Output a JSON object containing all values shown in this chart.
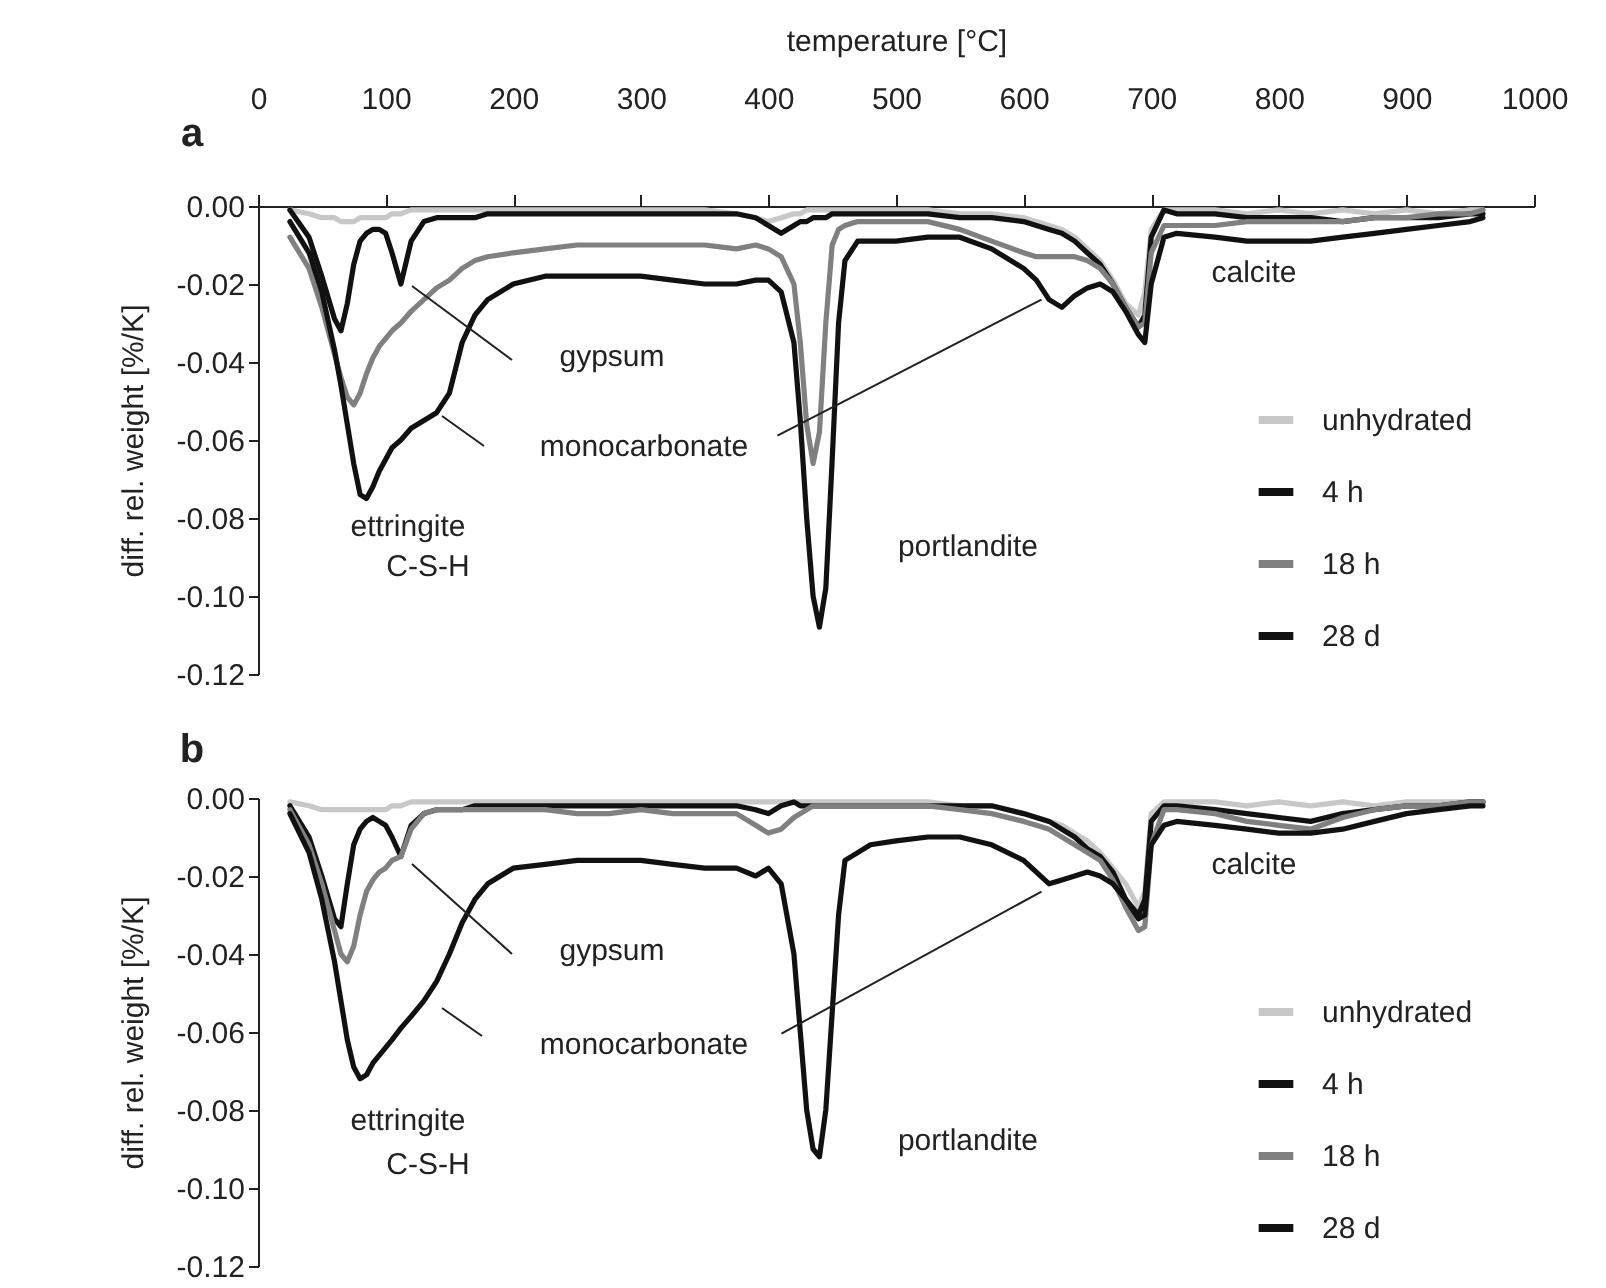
{
  "chart_data": [
    {
      "type": "line",
      "xlabel": "temperature [°C]",
      "ylabel": "diff. rel. weight [%/K]",
      "legend": "right",
      "xlim": [
        0,
        1000
      ],
      "xticks": [
        0,
        100,
        200,
        300,
        400,
        500,
        600,
        700,
        800,
        900,
        1000
      ],
      "ylim": [
        -0.12,
        0
      ],
      "yticks": [
        {
          "value": 0,
          "label": "0.00"
        },
        {
          "value": -0.02,
          "label": "-0.02"
        },
        {
          "value": -0.04,
          "label": "-0.04"
        },
        {
          "value": -0.06,
          "label": "-0.06"
        },
        {
          "value": -0.08,
          "label": "-0.08"
        },
        {
          "value": -0.1,
          "label": "-0.10"
        },
        {
          "value": -0.12,
          "label": "-0.12"
        }
      ],
      "annotations": [
        "a",
        "gypsum",
        {
          "text": "monocarbonate",
          "x": 614,
          "y": -0.024
        },
        "ettringite",
        "C-S-H",
        "portlandite",
        "calcite"
      ],
      "x": [
        25,
        40,
        50,
        60,
        65,
        70,
        75,
        80,
        85,
        90,
        95,
        100,
        105,
        112,
        120,
        130,
        140,
        150,
        160,
        170,
        180,
        200,
        225,
        250,
        275,
        300,
        325,
        350,
        375,
        390,
        400,
        410,
        420,
        425,
        430,
        435,
        440,
        445,
        450,
        455,
        460,
        470,
        480,
        500,
        525,
        550,
        575,
        600,
        610,
        620,
        630,
        640,
        650,
        660,
        670,
        680,
        690,
        695,
        700,
        710,
        720,
        750,
        775,
        800,
        825,
        850,
        875,
        900,
        925,
        950,
        960
      ],
      "series": [
        {
          "name": "unhydrated",
          "color": "#c8c8c8",
          "values": [
            -0.001,
            -0.002,
            -0.003,
            -0.003,
            -0.004,
            -0.004,
            -0.004,
            -0.003,
            -0.003,
            -0.003,
            -0.003,
            -0.003,
            -0.002,
            -0.002,
            -0.001,
            -0.001,
            -0.001,
            -0.001,
            -0.001,
            -0.001,
            -0.001,
            -0.001,
            -0.001,
            -0.001,
            -0.001,
            -0.001,
            -0.001,
            -0.001,
            -0.002,
            -0.003,
            -0.004,
            -0.003,
            -0.002,
            -0.002,
            -0.001,
            -0.001,
            -0.001,
            -0.001,
            -0.001,
            -0.001,
            -0.001,
            -0.001,
            -0.001,
            -0.001,
            -0.001,
            -0.002,
            -0.002,
            -0.003,
            -0.004,
            -0.005,
            -0.006,
            -0.008,
            -0.011,
            -0.014,
            -0.019,
            -0.025,
            -0.028,
            -0.022,
            -0.006,
            -0.001,
            -0.001,
            -0.001,
            -0.002,
            -0.001,
            -0.002,
            -0.001,
            -0.002,
            -0.001,
            -0.002,
            -0.001,
            -0.001
          ]
        },
        {
          "name": "4 h",
          "color": "#111111",
          "values": [
            -0.001,
            -0.008,
            -0.018,
            -0.029,
            -0.032,
            -0.025,
            -0.015,
            -0.009,
            -0.007,
            -0.006,
            -0.006,
            -0.007,
            -0.012,
            -0.02,
            -0.009,
            -0.004,
            -0.003,
            -0.003,
            -0.003,
            -0.003,
            -0.002,
            -0.002,
            -0.002,
            -0.002,
            -0.002,
            -0.002,
            -0.002,
            -0.002,
            -0.002,
            -0.003,
            -0.005,
            -0.007,
            -0.005,
            -0.004,
            -0.004,
            -0.003,
            -0.003,
            -0.003,
            -0.002,
            -0.002,
            -0.002,
            -0.002,
            -0.002,
            -0.002,
            -0.002,
            -0.003,
            -0.003,
            -0.004,
            -0.005,
            -0.006,
            -0.007,
            -0.009,
            -0.012,
            -0.015,
            -0.02,
            -0.026,
            -0.031,
            -0.028,
            -0.008,
            -0.001,
            -0.002,
            -0.002,
            -0.003,
            -0.003,
            -0.003,
            -0.004,
            -0.003,
            -0.003,
            -0.003,
            -0.002,
            -0.002
          ]
        },
        {
          "name": "18 h",
          "color": "#808080",
          "values": [
            -0.008,
            -0.016,
            -0.026,
            -0.038,
            -0.044,
            -0.049,
            -0.051,
            -0.048,
            -0.043,
            -0.039,
            -0.036,
            -0.034,
            -0.032,
            -0.03,
            -0.027,
            -0.024,
            -0.021,
            -0.019,
            -0.016,
            -0.014,
            -0.013,
            -0.012,
            -0.011,
            -0.01,
            -0.01,
            -0.01,
            -0.01,
            -0.01,
            -0.011,
            -0.01,
            -0.011,
            -0.013,
            -0.02,
            -0.035,
            -0.056,
            -0.066,
            -0.058,
            -0.03,
            -0.01,
            -0.006,
            -0.005,
            -0.004,
            -0.004,
            -0.004,
            -0.004,
            -0.006,
            -0.009,
            -0.012,
            -0.013,
            -0.013,
            -0.013,
            -0.013,
            -0.014,
            -0.016,
            -0.02,
            -0.026,
            -0.031,
            -0.03,
            -0.012,
            -0.005,
            -0.005,
            -0.005,
            -0.004,
            -0.004,
            -0.004,
            -0.004,
            -0.003,
            -0.003,
            -0.002,
            -0.002,
            -0.001
          ]
        },
        {
          "name": "28 d",
          "color": "#111111",
          "values": [
            -0.004,
            -0.012,
            -0.022,
            -0.037,
            -0.046,
            -0.056,
            -0.066,
            -0.074,
            -0.075,
            -0.072,
            -0.068,
            -0.065,
            -0.062,
            -0.06,
            -0.057,
            -0.055,
            -0.053,
            -0.048,
            -0.035,
            -0.028,
            -0.024,
            -0.02,
            -0.018,
            -0.018,
            -0.018,
            -0.018,
            -0.019,
            -0.02,
            -0.02,
            -0.019,
            -0.019,
            -0.022,
            -0.035,
            -0.055,
            -0.08,
            -0.1,
            -0.108,
            -0.098,
            -0.065,
            -0.03,
            -0.014,
            -0.009,
            -0.009,
            -0.009,
            -0.008,
            -0.008,
            -0.011,
            -0.016,
            -0.019,
            -0.024,
            -0.026,
            -0.023,
            -0.021,
            -0.02,
            -0.022,
            -0.027,
            -0.033,
            -0.035,
            -0.02,
            -0.008,
            -0.007,
            -0.008,
            -0.009,
            -0.009,
            -0.009,
            -0.008,
            -0.007,
            -0.006,
            -0.005,
            -0.004,
            -0.003
          ]
        }
      ]
    },
    {
      "type": "line",
      "ylabel": "diff. rel. weight [%/K]",
      "legend": "right",
      "tick_labels": "y",
      "xlim": [
        0,
        1000
      ],
      "xticks": [
        0,
        100,
        200,
        300,
        400,
        500,
        600,
        700,
        800,
        900,
        1000
      ],
      "ylim": [
        -0.12,
        0
      ],
      "yticks": [
        {
          "value": 0,
          "label": "0.00"
        },
        {
          "value": -0.02,
          "label": "-0.02"
        },
        {
          "value": -0.04,
          "label": "-0.04"
        },
        {
          "value": -0.06,
          "label": "-0.06"
        },
        {
          "value": -0.08,
          "label": "-0.08"
        },
        {
          "value": -0.1,
          "label": "-0.10"
        },
        {
          "value": -0.12,
          "label": "-0.12"
        }
      ],
      "annotations": [
        "b",
        "gypsum",
        {
          "text": "monocarbonate",
          "x": 614,
          "y": -0.024
        },
        "ettringite",
        "C-S-H",
        "portlandite",
        "calcite"
      ],
      "x": [
        25,
        40,
        50,
        60,
        65,
        70,
        75,
        80,
        85,
        90,
        95,
        100,
        105,
        112,
        120,
        130,
        140,
        150,
        160,
        170,
        180,
        200,
        225,
        250,
        275,
        300,
        325,
        350,
        375,
        390,
        400,
        410,
        420,
        425,
        430,
        435,
        440,
        445,
        450,
        455,
        460,
        470,
        480,
        500,
        525,
        550,
        575,
        600,
        610,
        620,
        630,
        640,
        650,
        660,
        670,
        680,
        690,
        695,
        700,
        710,
        720,
        750,
        775,
        800,
        825,
        850,
        875,
        900,
        925,
        950,
        960
      ],
      "series": [
        {
          "name": "unhydrated",
          "color": "#c8c8c8",
          "values": [
            -0.001,
            -0.002,
            -0.003,
            -0.003,
            -0.003,
            -0.003,
            -0.003,
            -0.003,
            -0.003,
            -0.003,
            -0.003,
            -0.003,
            -0.002,
            -0.002,
            -0.001,
            -0.001,
            -0.001,
            -0.001,
            -0.001,
            -0.001,
            -0.001,
            -0.001,
            -0.001,
            -0.001,
            -0.001,
            -0.001,
            -0.001,
            -0.001,
            -0.001,
            -0.001,
            -0.001,
            -0.001,
            -0.001,
            -0.001,
            -0.001,
            -0.001,
            -0.001,
            -0.001,
            -0.001,
            -0.001,
            -0.001,
            -0.001,
            -0.001,
            -0.001,
            -0.001,
            -0.002,
            -0.002,
            -0.004,
            -0.005,
            -0.006,
            -0.007,
            -0.009,
            -0.011,
            -0.014,
            -0.018,
            -0.022,
            -0.028,
            -0.024,
            -0.004,
            -0.001,
            -0.001,
            -0.001,
            -0.002,
            -0.001,
            -0.002,
            -0.001,
            -0.002,
            -0.001,
            -0.001,
            -0.001,
            -0.001
          ]
        },
        {
          "name": "4 h",
          "color": "#111111",
          "values": [
            -0.002,
            -0.01,
            -0.02,
            -0.031,
            -0.033,
            -0.022,
            -0.012,
            -0.008,
            -0.006,
            -0.005,
            -0.006,
            -0.007,
            -0.01,
            -0.015,
            -0.007,
            -0.004,
            -0.003,
            -0.003,
            -0.003,
            -0.002,
            -0.002,
            -0.002,
            -0.002,
            -0.002,
            -0.002,
            -0.002,
            -0.002,
            -0.002,
            -0.002,
            -0.003,
            -0.004,
            -0.002,
            -0.001,
            -0.002,
            -0.002,
            -0.002,
            -0.002,
            -0.002,
            -0.002,
            -0.002,
            -0.002,
            -0.002,
            -0.002,
            -0.002,
            -0.002,
            -0.002,
            -0.002,
            -0.004,
            -0.005,
            -0.006,
            -0.008,
            -0.01,
            -0.013,
            -0.015,
            -0.019,
            -0.026,
            -0.03,
            -0.026,
            -0.006,
            -0.002,
            -0.002,
            -0.003,
            -0.004,
            -0.005,
            -0.006,
            -0.004,
            -0.003,
            -0.002,
            -0.002,
            -0.001,
            -0.001
          ]
        },
        {
          "name": "18 h",
          "color": "#808080",
          "values": [
            -0.003,
            -0.012,
            -0.022,
            -0.034,
            -0.04,
            -0.042,
            -0.038,
            -0.03,
            -0.024,
            -0.021,
            -0.019,
            -0.018,
            -0.016,
            -0.015,
            -0.008,
            -0.004,
            -0.003,
            -0.003,
            -0.003,
            -0.003,
            -0.003,
            -0.003,
            -0.003,
            -0.004,
            -0.004,
            -0.003,
            -0.004,
            -0.004,
            -0.004,
            -0.007,
            -0.009,
            -0.008,
            -0.005,
            -0.004,
            -0.003,
            -0.002,
            -0.002,
            -0.002,
            -0.002,
            -0.002,
            -0.002,
            -0.002,
            -0.002,
            -0.002,
            -0.002,
            -0.003,
            -0.004,
            -0.006,
            -0.007,
            -0.008,
            -0.01,
            -0.012,
            -0.014,
            -0.016,
            -0.021,
            -0.028,
            -0.034,
            -0.033,
            -0.012,
            -0.003,
            -0.003,
            -0.004,
            -0.006,
            -0.007,
            -0.008,
            -0.005,
            -0.003,
            -0.002,
            -0.002,
            -0.001,
            -0.001
          ]
        },
        {
          "name": "28 d",
          "color": "#111111",
          "values": [
            -0.004,
            -0.014,
            -0.026,
            -0.042,
            -0.052,
            -0.062,
            -0.069,
            -0.072,
            -0.071,
            -0.068,
            -0.066,
            -0.064,
            -0.062,
            -0.059,
            -0.056,
            -0.052,
            -0.047,
            -0.04,
            -0.032,
            -0.026,
            -0.022,
            -0.018,
            -0.017,
            -0.016,
            -0.016,
            -0.016,
            -0.017,
            -0.018,
            -0.018,
            -0.02,
            -0.018,
            -0.022,
            -0.04,
            -0.06,
            -0.08,
            -0.09,
            -0.092,
            -0.08,
            -0.055,
            -0.03,
            -0.016,
            -0.014,
            -0.012,
            -0.011,
            -0.01,
            -0.01,
            -0.012,
            -0.016,
            -0.019,
            -0.022,
            -0.021,
            -0.02,
            -0.019,
            -0.02,
            -0.022,
            -0.026,
            -0.031,
            -0.03,
            -0.012,
            -0.007,
            -0.006,
            -0.007,
            -0.008,
            -0.009,
            -0.009,
            -0.008,
            -0.006,
            -0.004,
            -0.003,
            -0.002,
            -0.002
          ]
        }
      ]
    }
  ]
}
